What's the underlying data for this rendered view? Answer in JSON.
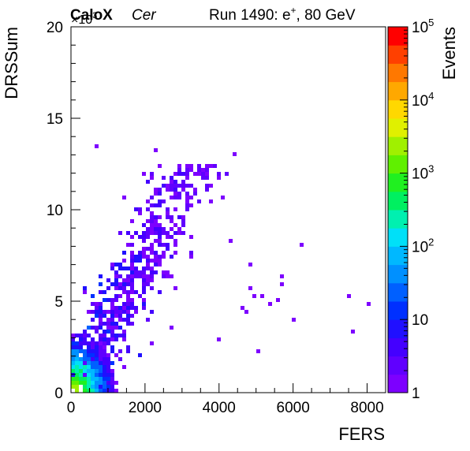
{
  "chart_data": {
    "type": "heatmap",
    "title": "",
    "header": {
      "brand": "CaloX",
      "channel": "Cer",
      "run": "Run 1490: e",
      "particle_charge": "+",
      "energy": ", 80 GeV"
    },
    "xlabel": "FERS",
    "ylabel": "DRSSum",
    "y_multiplier_label": "×10",
    "y_multiplier_exp": "3",
    "zlabel": "Events",
    "xlim": [
      0,
      8500
    ],
    "ylim": [
      0,
      20000
    ],
    "zlim": [
      1,
      100000
    ],
    "z_log_scale": true,
    "grid": false,
    "x_ticks": [
      {
        "value": 0,
        "label": "0"
      },
      {
        "value": 2000,
        "label": "2000"
      },
      {
        "value": 4000,
        "label": "4000"
      },
      {
        "value": 6000,
        "label": "6000"
      },
      {
        "value": 8000,
        "label": "8000"
      }
    ],
    "y_ticks": [
      {
        "value": 0,
        "label": "0"
      },
      {
        "value": 5000,
        "label": "5"
      },
      {
        "value": 10000,
        "label": "10"
      },
      {
        "value": 15000,
        "label": "15"
      },
      {
        "value": 20000,
        "label": "20"
      }
    ],
    "z_ticks": [
      {
        "value": 1,
        "base": "1",
        "exp": ""
      },
      {
        "value": 10,
        "base": "10",
        "exp": ""
      },
      {
        "value": 100,
        "base": "10",
        "exp": "2"
      },
      {
        "value": 1000,
        "base": "10",
        "exp": "3"
      },
      {
        "value": 10000,
        "base": "10",
        "exp": "4"
      },
      {
        "value": 100000,
        "base": "10",
        "exp": "5"
      }
    ],
    "palette": [
      "#7d00ff",
      "#6000ff",
      "#4400ff",
      "#2010ff",
      "#0030ff",
      "#0060ff",
      "#0090ff",
      "#00b8ff",
      "#00e0f8",
      "#00f0b0",
      "#00f060",
      "#20f020",
      "#60f000",
      "#a0f000",
      "#e0f000",
      "#ffd800",
      "#ffa800",
      "#ff7800",
      "#ff4000",
      "#ff0000"
    ]
  }
}
